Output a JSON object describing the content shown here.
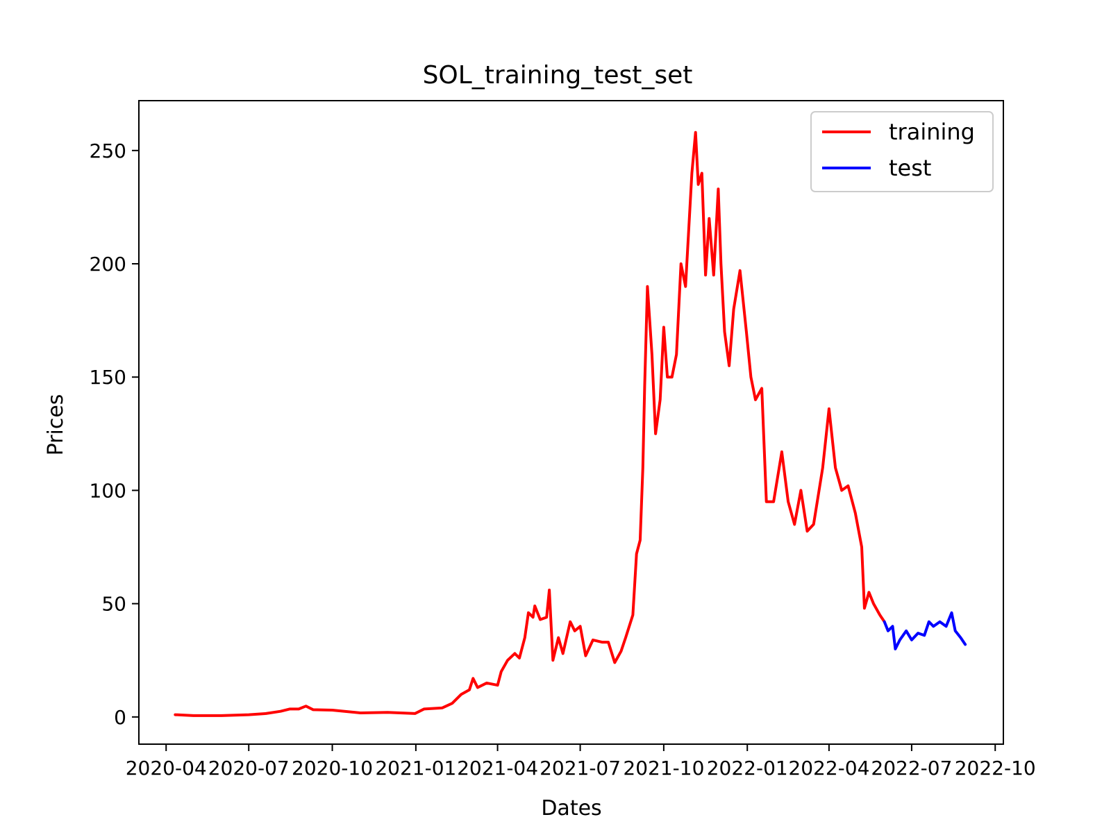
{
  "chart_data": {
    "type": "line",
    "title": "SOL_training_test_set",
    "xlabel": "Dates",
    "ylabel": "Prices",
    "xlim": [
      "2020-03-02",
      "2022-10-10"
    ],
    "ylim": [
      -12,
      272
    ],
    "x_ticks": [
      "2020-04",
      "2020-07",
      "2020-10",
      "2021-01",
      "2021-04",
      "2021-07",
      "2021-10",
      "2022-01",
      "2022-04",
      "2022-07",
      "2022-10"
    ],
    "y_ticks": [
      0,
      50,
      100,
      150,
      200,
      250
    ],
    "grid": false,
    "legend_position": "top-right",
    "series": [
      {
        "name": "training",
        "color": "#ff0000",
        "points": [
          [
            "2020-04-11",
            1.0
          ],
          [
            "2020-05-01",
            0.6
          ],
          [
            "2020-06-01",
            0.6
          ],
          [
            "2020-07-01",
            1.0
          ],
          [
            "2020-07-20",
            1.5
          ],
          [
            "2020-08-05",
            2.5
          ],
          [
            "2020-08-15",
            3.5
          ],
          [
            "2020-08-25",
            3.5
          ],
          [
            "2020-09-02",
            4.8
          ],
          [
            "2020-09-10",
            3.2
          ],
          [
            "2020-10-01",
            3.0
          ],
          [
            "2020-11-01",
            1.8
          ],
          [
            "2020-12-01",
            2.0
          ],
          [
            "2020-12-31",
            1.5
          ],
          [
            "2021-01-10",
            3.5
          ],
          [
            "2021-01-30",
            4.0
          ],
          [
            "2021-02-10",
            6.0
          ],
          [
            "2021-02-20",
            10.0
          ],
          [
            "2021-03-01",
            12.0
          ],
          [
            "2021-03-05",
            17.0
          ],
          [
            "2021-03-10",
            13.0
          ],
          [
            "2021-03-20",
            15.0
          ],
          [
            "2021-04-01",
            14.0
          ],
          [
            "2021-04-05",
            20.0
          ],
          [
            "2021-04-12",
            25.0
          ],
          [
            "2021-04-20",
            28.0
          ],
          [
            "2021-04-25",
            26.0
          ],
          [
            "2021-05-01",
            35.0
          ],
          [
            "2021-05-05",
            46.0
          ],
          [
            "2021-05-10",
            44.0
          ],
          [
            "2021-05-12",
            49.0
          ],
          [
            "2021-05-18",
            43.0
          ],
          [
            "2021-05-25",
            44.0
          ],
          [
            "2021-05-28",
            56.0
          ],
          [
            "2021-06-01",
            25.0
          ],
          [
            "2021-06-07",
            35.0
          ],
          [
            "2021-06-12",
            28.0
          ],
          [
            "2021-06-20",
            42.0
          ],
          [
            "2021-06-25",
            38.0
          ],
          [
            "2021-07-01",
            40.0
          ],
          [
            "2021-07-07",
            27.0
          ],
          [
            "2021-07-15",
            34.0
          ],
          [
            "2021-07-25",
            33.0
          ],
          [
            "2021-08-01",
            33.0
          ],
          [
            "2021-08-08",
            24.0
          ],
          [
            "2021-08-15",
            29.0
          ],
          [
            "2021-08-20",
            35.0
          ],
          [
            "2021-08-28",
            45.0
          ],
          [
            "2021-09-01",
            72.0
          ],
          [
            "2021-09-05",
            78.0
          ],
          [
            "2021-09-08",
            110.0
          ],
          [
            "2021-09-10",
            146.0
          ],
          [
            "2021-09-13",
            190.0
          ],
          [
            "2021-09-18",
            160.0
          ],
          [
            "2021-09-22",
            125.0
          ],
          [
            "2021-09-27",
            140.0
          ],
          [
            "2021-10-01",
            172.0
          ],
          [
            "2021-10-05",
            150.0
          ],
          [
            "2021-10-10",
            150.0
          ],
          [
            "2021-10-15",
            160.0
          ],
          [
            "2021-10-20",
            200.0
          ],
          [
            "2021-10-25",
            190.0
          ],
          [
            "2021-11-01",
            240.0
          ],
          [
            "2021-11-05",
            258.0
          ],
          [
            "2021-11-08",
            235.0
          ],
          [
            "2021-11-12",
            240.0
          ],
          [
            "2021-11-16",
            195.0
          ],
          [
            "2021-11-20",
            220.0
          ],
          [
            "2021-11-25",
            195.0
          ],
          [
            "2021-11-30",
            233.0
          ],
          [
            "2021-12-03",
            200.0
          ],
          [
            "2021-12-07",
            170.0
          ],
          [
            "2021-12-12",
            155.0
          ],
          [
            "2021-12-17",
            180.0
          ],
          [
            "2021-12-24",
            197.0
          ],
          [
            "2021-12-31",
            170.0
          ],
          [
            "2022-01-05",
            150.0
          ],
          [
            "2022-01-10",
            140.0
          ],
          [
            "2022-01-17",
            145.0
          ],
          [
            "2022-01-22",
            95.0
          ],
          [
            "2022-01-30",
            95.0
          ],
          [
            "2022-02-08",
            117.0
          ],
          [
            "2022-02-15",
            95.0
          ],
          [
            "2022-02-22",
            85.0
          ],
          [
            "2022-03-01",
            100.0
          ],
          [
            "2022-03-08",
            82.0
          ],
          [
            "2022-03-15",
            85.0
          ],
          [
            "2022-03-25",
            110.0
          ],
          [
            "2022-04-01",
            136.0
          ],
          [
            "2022-04-08",
            110.0
          ],
          [
            "2022-04-15",
            100.0
          ],
          [
            "2022-04-22",
            102.0
          ],
          [
            "2022-04-30",
            90.0
          ],
          [
            "2022-05-07",
            75.0
          ],
          [
            "2022-05-10",
            48.0
          ],
          [
            "2022-05-15",
            55.0
          ],
          [
            "2022-05-20",
            50.0
          ],
          [
            "2022-05-27",
            45.0
          ],
          [
            "2022-06-01",
            42.0
          ]
        ]
      },
      {
        "name": "test",
        "color": "#0000ff",
        "points": [
          [
            "2022-06-01",
            42.0
          ],
          [
            "2022-06-05",
            38.0
          ],
          [
            "2022-06-10",
            40.0
          ],
          [
            "2022-06-13",
            30.0
          ],
          [
            "2022-06-18",
            34.0
          ],
          [
            "2022-06-25",
            38.0
          ],
          [
            "2022-07-01",
            34.0
          ],
          [
            "2022-07-08",
            37.0
          ],
          [
            "2022-07-15",
            36.0
          ],
          [
            "2022-07-20",
            42.0
          ],
          [
            "2022-07-25",
            40.0
          ],
          [
            "2022-08-01",
            42.0
          ],
          [
            "2022-08-08",
            40.0
          ],
          [
            "2022-08-14",
            46.0
          ],
          [
            "2022-08-18",
            38.0
          ],
          [
            "2022-08-24",
            35.0
          ],
          [
            "2022-08-29",
            32.0
          ]
        ]
      }
    ]
  }
}
